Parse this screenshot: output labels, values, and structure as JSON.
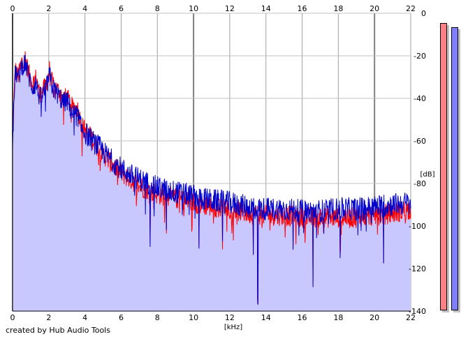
{
  "chart_data": {
    "type": "area",
    "xlabel": "[kHz]",
    "ylabel": "[dB]",
    "xlim": [
      0,
      22
    ],
    "ylim": [
      -140,
      0
    ],
    "x_ticks": [
      0,
      2,
      4,
      6,
      8,
      10,
      12,
      14,
      16,
      18,
      20,
      22
    ],
    "y_ticks": [
      0,
      -20,
      -40,
      -60,
      -80,
      -100,
      -120,
      -140
    ],
    "grid": true,
    "series": [
      {
        "color": "#ff0000",
        "points": [
          [
            0.0,
            -55
          ],
          [
            0.15,
            -26
          ],
          [
            0.3,
            -30
          ],
          [
            0.5,
            -23
          ],
          [
            0.7,
            -21
          ],
          [
            0.9,
            -28
          ],
          [
            1.1,
            -33
          ],
          [
            1.3,
            -30
          ],
          [
            1.5,
            -38
          ],
          [
            1.7,
            -36
          ],
          [
            1.9,
            -32
          ],
          [
            2.05,
            -26
          ],
          [
            2.2,
            -33
          ],
          [
            2.5,
            -36
          ],
          [
            2.8,
            -40
          ],
          [
            3.0,
            -39
          ],
          [
            3.3,
            -44
          ],
          [
            3.6,
            -45
          ],
          [
            3.8,
            -52
          ],
          [
            4.0,
            -55
          ],
          [
            4.4,
            -59
          ],
          [
            4.8,
            -64
          ],
          [
            5.2,
            -68
          ],
          [
            5.6,
            -72
          ],
          [
            6.0,
            -75
          ],
          [
            6.5,
            -78
          ],
          [
            7.0,
            -81
          ],
          [
            7.5,
            -83
          ],
          [
            8.0,
            -85
          ],
          [
            9.0,
            -87
          ],
          [
            10.0,
            -89
          ],
          [
            11.0,
            -91
          ],
          [
            12.0,
            -92
          ],
          [
            13.0,
            -94
          ],
          [
            14.0,
            -95
          ],
          [
            15.0,
            -95
          ],
          [
            16.0,
            -96
          ],
          [
            17.0,
            -96
          ],
          [
            18.0,
            -96
          ],
          [
            19.0,
            -96
          ],
          [
            20.0,
            -95
          ],
          [
            21.0,
            -94
          ],
          [
            22.0,
            -92
          ]
        ]
      },
      {
        "color": "#0000cc",
        "points": [
          [
            0.0,
            -60
          ],
          [
            0.15,
            -27
          ],
          [
            0.3,
            -31
          ],
          [
            0.5,
            -25
          ],
          [
            0.7,
            -23
          ],
          [
            0.9,
            -30
          ],
          [
            1.1,
            -35
          ],
          [
            1.3,
            -33
          ],
          [
            1.5,
            -40
          ],
          [
            1.7,
            -38
          ],
          [
            1.9,
            -34
          ],
          [
            2.05,
            -29
          ],
          [
            2.2,
            -35
          ],
          [
            2.5,
            -38
          ],
          [
            2.8,
            -42
          ],
          [
            3.0,
            -41
          ],
          [
            3.3,
            -47
          ],
          [
            3.6,
            -48
          ],
          [
            3.8,
            -54
          ],
          [
            4.0,
            -56
          ],
          [
            4.4,
            -60
          ],
          [
            4.8,
            -63
          ],
          [
            5.2,
            -67
          ],
          [
            5.6,
            -70
          ],
          [
            6.0,
            -73
          ],
          [
            6.5,
            -76
          ],
          [
            7.0,
            -78
          ],
          [
            7.5,
            -80
          ],
          [
            8.0,
            -82
          ],
          [
            9.0,
            -84
          ],
          [
            10.0,
            -86
          ],
          [
            11.0,
            -88
          ],
          [
            12.0,
            -89
          ],
          [
            13.0,
            -91
          ],
          [
            14.0,
            -92
          ],
          [
            15.0,
            -92
          ],
          [
            16.0,
            -93
          ],
          [
            17.0,
            -93
          ],
          [
            18.0,
            -92
          ],
          [
            19.0,
            -92
          ],
          [
            20.0,
            -91
          ],
          [
            21.0,
            -90
          ],
          [
            22.0,
            -89
          ]
        ]
      }
    ],
    "fill_color": "#c8c8ff",
    "dips": [
      {
        "x": 7.6,
        "y": -108
      },
      {
        "x": 8.5,
        "y": -102
      },
      {
        "x": 10.3,
        "y": -110
      },
      {
        "x": 11.6,
        "y": -109
      },
      {
        "x": 13.3,
        "y": -114
      },
      {
        "x": 13.55,
        "y": -136
      },
      {
        "x": 15.5,
        "y": -110
      },
      {
        "x": 16.6,
        "y": -128
      },
      {
        "x": 18.1,
        "y": -114
      },
      {
        "x": 20.5,
        "y": -118
      }
    ]
  },
  "credit": "created by Hub Audio Tools",
  "meters": {
    "left_color": "#ff8080",
    "right_color": "#8080ff"
  }
}
